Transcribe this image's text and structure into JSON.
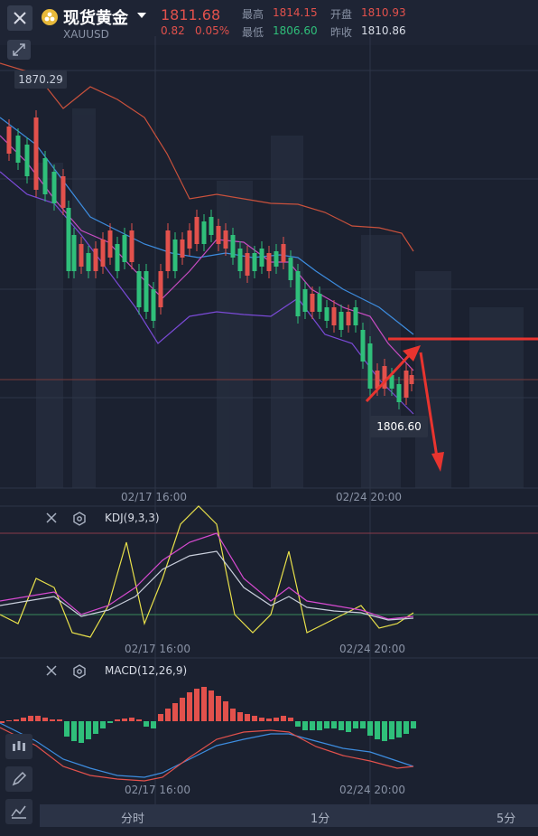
{
  "header": {
    "title": "现货黄金",
    "symbol": "XAUUSD",
    "price": "1811.68",
    "change": "0.82",
    "change_pct": "0.05%",
    "high_label": "最高",
    "high_value": "1814.15",
    "low_label": "最低",
    "low_value": "1806.60",
    "open_label": "开盘",
    "open_value": "1810.93",
    "prev_close_label": "昨收",
    "prev_close_value": "1810.86"
  },
  "chart": {
    "max_marker": "1870.29",
    "min_marker": "1806.60",
    "time_labels": [
      "02/17 16:00",
      "02/24 20:00"
    ]
  },
  "kdj": {
    "title": "KDJ(9,3,3)",
    "time_labels": [
      "02/17 16:00",
      "02/24 20:00"
    ]
  },
  "macd": {
    "title": "MACD(12,26,9)",
    "time_labels": [
      "02/17 16:00",
      "02/24 20:00"
    ]
  },
  "tabs": [
    "分时",
    "1分",
    "5分"
  ],
  "icons": [
    "close-icon",
    "gold-coin-icon",
    "chevron-down-icon",
    "expand-icon",
    "candlestick-icon",
    "pencil-icon",
    "indicator-icon",
    "gear-icon"
  ],
  "colors": {
    "up": "#e2514c",
    "down": "#2fbf7a",
    "background": "#1b2130",
    "arrow": "#e8342f",
    "ma_blue": "#3d8de0",
    "ma_magenta": "#c64cc2",
    "boll_orange": "#c9513c",
    "k_yellow": "#e8e04a",
    "d_pink": "#d64ad0"
  }
}
